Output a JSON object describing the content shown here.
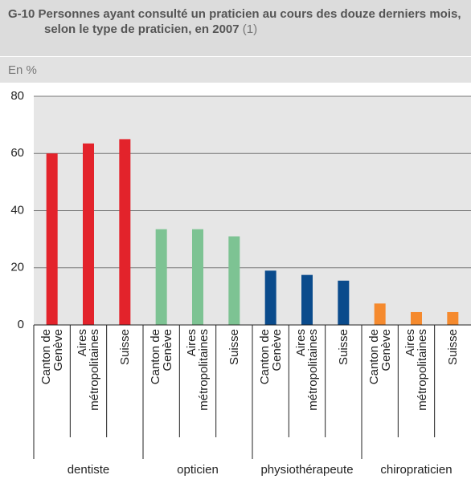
{
  "chart_data": {
    "type": "bar",
    "title": "G-10 Personnes ayant consulté un praticien au cours des douze derniers mois, selon le type de praticien, en 2007",
    "note": "(1)",
    "subtitle": "En %",
    "categories": [
      "dentiste",
      "opticien",
      "physiothérapeute",
      "chiropraticien"
    ],
    "subcategories": [
      "Canton de Genève",
      "Aires métropolitaines",
      "Suisse"
    ],
    "colors": [
      "#e3232b",
      "#7dc393",
      "#0a4b8c",
      "#f58a2e"
    ],
    "values": [
      [
        60,
        63.5,
        65
      ],
      [
        33.5,
        33.5,
        31
      ],
      [
        19,
        17.5,
        15.5
      ],
      [
        7.5,
        4.5,
        4.5
      ]
    ],
    "ylim": [
      0,
      80
    ],
    "yticks": [
      0,
      20,
      40,
      60,
      80
    ],
    "grid": true
  }
}
